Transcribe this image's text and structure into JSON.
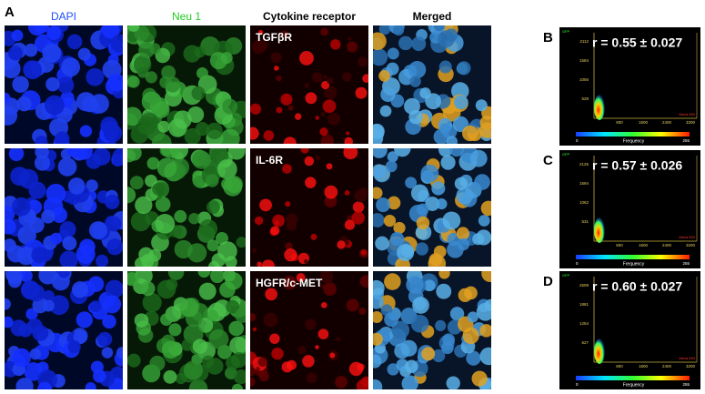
{
  "panel_a": {
    "label": "A",
    "columns": [
      "DAPI",
      "Neu 1",
      "Cytokine receptor",
      "Merged"
    ],
    "rows": [
      {
        "receptor": "TGFβR"
      },
      {
        "receptor": "IL-6R"
      },
      {
        "receptor": "HGFR/c-MET"
      }
    ]
  },
  "plots": [
    {
      "label": "B",
      "r": "r = 0.55 ± 0.027",
      "y_axis": "GFP",
      "x_axis": "Alexa 594",
      "yticks": [
        "2112",
        "1584",
        "1056",
        "528"
      ],
      "xticks": [
        "800",
        "1600",
        "2400",
        "3200"
      ],
      "colorbar": {
        "title": "Frequency",
        "min": "0",
        "max": "255"
      }
    },
    {
      "label": "C",
      "r": "r = 0.57 ± 0.026",
      "y_axis": "GFP",
      "x_axis": "Alexa 594",
      "yticks": [
        "2125",
        "1594",
        "1062",
        "531"
      ],
      "xticks": [
        "800",
        "1600",
        "2400",
        "3200"
      ],
      "colorbar": {
        "title": "Frequency",
        "min": "0",
        "max": "255"
      }
    },
    {
      "label": "D",
      "r": "r = 0.60 ± 0.027",
      "y_axis": "GFP",
      "x_axis": "Alexa 594",
      "yticks": [
        "2509",
        "1881",
        "1254",
        "627"
      ],
      "xticks": [
        "800",
        "1600",
        "2400",
        "3200"
      ],
      "colorbar": {
        "title": "Frequency",
        "min": "0",
        "max": "255"
      }
    }
  ]
}
